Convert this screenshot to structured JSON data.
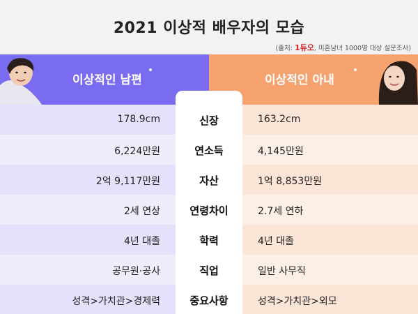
{
  "title": "2021 이상적 배우자의 모습",
  "source": {
    "prefix": "(출처:",
    "logo_text": "1듀오",
    "suffix": ", 미혼남녀 1000명 대상 설문조사)"
  },
  "headers": {
    "left": "이상적인 남편",
    "right": "이상적인 아내"
  },
  "colors": {
    "left_header": "#7a6cf0",
    "right_header": "#f5a26e",
    "logo": "#d61f26"
  },
  "rows": [
    {
      "category": "신장",
      "husband": "178.9cm",
      "wife": "163.2cm"
    },
    {
      "category": "연소득",
      "husband": "6,224만원",
      "wife": "4,145만원"
    },
    {
      "category": "자산",
      "husband": "2억 9,117만원",
      "wife": "1억 8,853만원"
    },
    {
      "category": "연령차이",
      "husband": "2세 연상",
      "wife": "2.7세 연하"
    },
    {
      "category": "학력",
      "husband": "4년 대졸",
      "wife": "4년 대졸"
    },
    {
      "category": "직업",
      "husband": "공무원·공사",
      "wife": "일반 사무직"
    },
    {
      "category": "중요사항",
      "husband": "성격>가치관>경제력",
      "wife": "성격>가치관>외모"
    }
  ]
}
